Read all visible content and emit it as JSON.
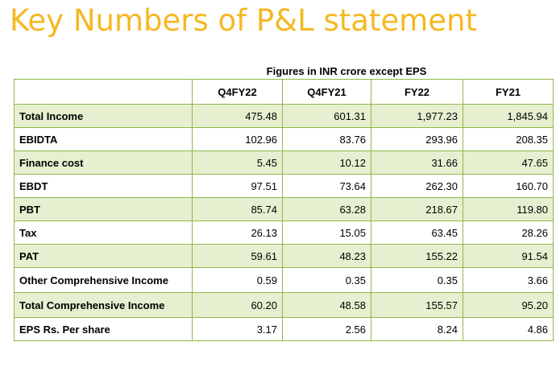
{
  "title": "Key Numbers of P&L statement",
  "caption": "Figures in INR crore except EPS",
  "columns": [
    "",
    "Q4FY22",
    "Q4FY21",
    "FY22",
    "FY21"
  ],
  "rows": [
    {
      "label": "Total Income",
      "values": [
        "475.48",
        "601.31",
        "1,977.23",
        "1,845.94"
      ]
    },
    {
      "label": "EBIDTA",
      "values": [
        "102.96",
        "83.76",
        "293.96",
        "208.35"
      ]
    },
    {
      "label": "Finance cost",
      "values": [
        "5.45",
        "10.12",
        "31.66",
        "47.65"
      ]
    },
    {
      "label": "EBDT",
      "values": [
        "97.51",
        "73.64",
        "262.30",
        "160.70"
      ]
    },
    {
      "label": "PBT",
      "values": [
        "85.74",
        "63.28",
        "218.67",
        "119.80"
      ]
    },
    {
      "label": "Tax",
      "values": [
        "26.13",
        "15.05",
        "63.45",
        "28.26"
      ]
    },
    {
      "label": "PAT",
      "values": [
        "59.61",
        "48.23",
        "155.22",
        "91.54"
      ]
    },
    {
      "label": "Other Comprehensive Income",
      "values": [
        "0.59",
        "0.35",
        "0.35",
        "3.66"
      ]
    },
    {
      "label": "Total Comprehensive Income",
      "values": [
        "60.20",
        "48.58",
        "155.57",
        "95.20"
      ]
    },
    {
      "label": "EPS Rs. Per share",
      "values": [
        "3.17",
        "2.56",
        "8.24",
        "4.86"
      ]
    }
  ],
  "colors": {
    "title": "#F5B823",
    "border": "#8DB94A",
    "row_shade": "#E6F0D0"
  }
}
